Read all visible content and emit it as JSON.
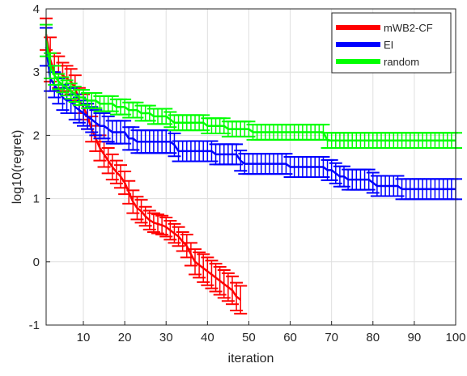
{
  "chart_data": {
    "type": "line",
    "title": "",
    "xlabel": "iteration",
    "ylabel": "log10(regret)",
    "xlim": [
      1,
      100
    ],
    "ylim": [
      -1,
      4
    ],
    "xticks": [
      10,
      20,
      30,
      40,
      50,
      60,
      70,
      80,
      90,
      100
    ],
    "yticks": [
      -1,
      0,
      1,
      2,
      3,
      4
    ],
    "grid": true,
    "legend_position": "top-right",
    "series": [
      {
        "name": "mWB2-CF",
        "color": "#ff0000",
        "x": [
          1,
          2,
          3,
          4,
          5,
          6,
          7,
          8,
          9,
          10,
          11,
          12,
          13,
          14,
          15,
          16,
          17,
          18,
          19,
          20,
          21,
          22,
          23,
          24,
          25,
          26,
          27,
          28,
          29,
          30,
          31,
          32,
          33,
          34,
          35,
          36,
          37,
          38,
          39,
          40,
          41,
          42,
          43,
          44,
          45,
          46,
          47,
          48
        ],
        "y": [
          3.6,
          3.2,
          3.0,
          3.0,
          2.95,
          2.9,
          2.85,
          2.75,
          2.55,
          2.45,
          2.3,
          2.1,
          1.95,
          1.8,
          1.7,
          1.6,
          1.5,
          1.42,
          1.35,
          1.25,
          1.1,
          0.95,
          0.85,
          0.8,
          0.72,
          0.66,
          0.62,
          0.6,
          0.58,
          0.55,
          0.5,
          0.45,
          0.4,
          0.32,
          0.25,
          0.12,
          0.0,
          -0.05,
          -0.1,
          -0.15,
          -0.2,
          -0.25,
          -0.3,
          -0.35,
          -0.4,
          -0.45,
          -0.55,
          -0.6
        ],
        "err": [
          0.25,
          0.35,
          0.3,
          0.25,
          0.2,
          0.2,
          0.2,
          0.2,
          0.2,
          0.2,
          0.2,
          0.2,
          0.2,
          0.2,
          0.2,
          0.2,
          0.2,
          0.18,
          0.18,
          0.18,
          0.18,
          0.18,
          0.18,
          0.18,
          0.15,
          0.15,
          0.15,
          0.15,
          0.15,
          0.15,
          0.15,
          0.15,
          0.15,
          0.15,
          0.18,
          0.18,
          0.2,
          0.2,
          0.22,
          0.22,
          0.22,
          0.22,
          0.22,
          0.22,
          0.22,
          0.22,
          0.22,
          0.22
        ]
      },
      {
        "name": "EI",
        "color": "#0000ff",
        "x": [
          1,
          2,
          3,
          4,
          5,
          6,
          7,
          8,
          9,
          10,
          11,
          12,
          13,
          14,
          15,
          16,
          17,
          18,
          19,
          20,
          21,
          22,
          23,
          24,
          25,
          26,
          27,
          28,
          29,
          30,
          31,
          32,
          33,
          34,
          35,
          36,
          37,
          38,
          39,
          40,
          41,
          42,
          43,
          44,
          45,
          46,
          47,
          48,
          49,
          50,
          51,
          52,
          53,
          54,
          55,
          56,
          57,
          58,
          59,
          60,
          61,
          62,
          63,
          64,
          65,
          66,
          67,
          68,
          69,
          70,
          71,
          72,
          73,
          74,
          75,
          76,
          77,
          78,
          79,
          80,
          81,
          82,
          83,
          84,
          85,
          86,
          87,
          88,
          89,
          90,
          91,
          92,
          93,
          94,
          95,
          96,
          97,
          98,
          99,
          100
        ],
        "y": [
          3.4,
          2.9,
          2.8,
          2.7,
          2.6,
          2.55,
          2.55,
          2.45,
          2.4,
          2.35,
          2.3,
          2.25,
          2.2,
          2.15,
          2.15,
          2.1,
          2.05,
          2.05,
          2.05,
          2.05,
          1.95,
          1.95,
          1.9,
          1.9,
          1.9,
          1.9,
          1.9,
          1.9,
          1.9,
          1.9,
          1.9,
          1.85,
          1.75,
          1.75,
          1.75,
          1.75,
          1.75,
          1.75,
          1.75,
          1.75,
          1.75,
          1.7,
          1.7,
          1.7,
          1.7,
          1.7,
          1.7,
          1.6,
          1.55,
          1.55,
          1.55,
          1.55,
          1.55,
          1.55,
          1.55,
          1.55,
          1.55,
          1.55,
          1.55,
          1.5,
          1.5,
          1.5,
          1.5,
          1.5,
          1.5,
          1.5,
          1.5,
          1.5,
          1.45,
          1.45,
          1.4,
          1.35,
          1.35,
          1.3,
          1.3,
          1.3,
          1.3,
          1.3,
          1.3,
          1.25,
          1.2,
          1.2,
          1.2,
          1.2,
          1.2,
          1.2,
          1.15,
          1.15,
          1.15,
          1.15,
          1.15,
          1.15,
          1.15,
          1.15,
          1.15,
          1.15,
          1.15,
          1.15,
          1.15,
          1.15
        ],
        "err": [
          0.3,
          0.2,
          0.2,
          0.2,
          0.2,
          0.2,
          0.2,
          0.2,
          0.2,
          0.2,
          0.2,
          0.2,
          0.2,
          0.2,
          0.2,
          0.2,
          0.18,
          0.18,
          0.18,
          0.18,
          0.18,
          0.18,
          0.18,
          0.18,
          0.18,
          0.18,
          0.18,
          0.18,
          0.18,
          0.18,
          0.18,
          0.18,
          0.16,
          0.16,
          0.16,
          0.16,
          0.16,
          0.16,
          0.16,
          0.16,
          0.16,
          0.16,
          0.16,
          0.16,
          0.16,
          0.16,
          0.16,
          0.16,
          0.16,
          0.16,
          0.16,
          0.16,
          0.16,
          0.16,
          0.16,
          0.16,
          0.16,
          0.16,
          0.16,
          0.16,
          0.16,
          0.16,
          0.16,
          0.16,
          0.16,
          0.16,
          0.16,
          0.16,
          0.16,
          0.16,
          0.16,
          0.16,
          0.16,
          0.16,
          0.16,
          0.16,
          0.16,
          0.16,
          0.16,
          0.16,
          0.16,
          0.16,
          0.16,
          0.16,
          0.16,
          0.16,
          0.16,
          0.16,
          0.16,
          0.16,
          0.16,
          0.16,
          0.16,
          0.16,
          0.16,
          0.16,
          0.16,
          0.16,
          0.16,
          0.16
        ]
      },
      {
        "name": "random",
        "color": "#00ff00",
        "x": [
          1,
          2,
          3,
          4,
          5,
          6,
          7,
          8,
          9,
          10,
          11,
          12,
          13,
          14,
          15,
          16,
          17,
          18,
          19,
          20,
          21,
          22,
          23,
          24,
          25,
          26,
          27,
          28,
          29,
          30,
          31,
          32,
          33,
          34,
          35,
          36,
          37,
          38,
          39,
          40,
          41,
          42,
          43,
          44,
          45,
          46,
          47,
          48,
          49,
          50,
          51,
          52,
          53,
          54,
          55,
          56,
          57,
          58,
          59,
          60,
          61,
          62,
          63,
          64,
          65,
          66,
          67,
          68,
          69,
          70,
          71,
          72,
          73,
          74,
          75,
          76,
          77,
          78,
          79,
          80,
          81,
          82,
          83,
          84,
          85,
          86,
          87,
          88,
          89,
          90,
          91,
          92,
          93,
          94,
          95,
          96,
          97,
          98,
          99,
          100
        ],
        "y": [
          3.5,
          3.1,
          2.95,
          2.85,
          2.8,
          2.75,
          2.7,
          2.65,
          2.6,
          2.6,
          2.55,
          2.55,
          2.55,
          2.5,
          2.5,
          2.5,
          2.5,
          2.45,
          2.45,
          2.45,
          2.4,
          2.4,
          2.4,
          2.35,
          2.35,
          2.35,
          2.3,
          2.3,
          2.3,
          2.3,
          2.25,
          2.2,
          2.2,
          2.2,
          2.2,
          2.2,
          2.2,
          2.2,
          2.2,
          2.15,
          2.15,
          2.15,
          2.15,
          2.15,
          2.1,
          2.1,
          2.1,
          2.1,
          2.1,
          2.1,
          2.05,
          2.05,
          2.05,
          2.05,
          2.05,
          2.05,
          2.05,
          2.05,
          2.05,
          2.05,
          2.05,
          2.05,
          2.05,
          2.05,
          2.05,
          2.05,
          2.05,
          2.05,
          1.92,
          1.92,
          1.92,
          1.92,
          1.92,
          1.92,
          1.92,
          1.92,
          1.92,
          1.92,
          1.92,
          1.92,
          1.92,
          1.92,
          1.92,
          1.92,
          1.92,
          1.92,
          1.92,
          1.92,
          1.92,
          1.92,
          1.92,
          1.92,
          1.92,
          1.92,
          1.92,
          1.92,
          1.92,
          1.92,
          1.92,
          1.92
        ],
        "err": [
          0.25,
          0.2,
          0.15,
          0.12,
          0.12,
          0.12,
          0.12,
          0.12,
          0.12,
          0.12,
          0.12,
          0.12,
          0.12,
          0.12,
          0.12,
          0.12,
          0.12,
          0.12,
          0.12,
          0.12,
          0.12,
          0.12,
          0.12,
          0.12,
          0.12,
          0.12,
          0.12,
          0.12,
          0.12,
          0.12,
          0.12,
          0.12,
          0.12,
          0.12,
          0.12,
          0.12,
          0.12,
          0.12,
          0.12,
          0.12,
          0.12,
          0.12,
          0.12,
          0.12,
          0.12,
          0.12,
          0.12,
          0.12,
          0.12,
          0.12,
          0.12,
          0.12,
          0.12,
          0.12,
          0.12,
          0.12,
          0.12,
          0.12,
          0.12,
          0.12,
          0.12,
          0.12,
          0.12,
          0.12,
          0.12,
          0.12,
          0.12,
          0.12,
          0.12,
          0.12,
          0.12,
          0.12,
          0.12,
          0.12,
          0.12,
          0.12,
          0.12,
          0.12,
          0.12,
          0.12,
          0.12,
          0.12,
          0.12,
          0.12,
          0.12,
          0.12,
          0.12,
          0.12,
          0.12,
          0.12,
          0.12,
          0.12,
          0.12,
          0.12,
          0.12,
          0.12,
          0.12,
          0.12,
          0.12,
          0.12
        ]
      }
    ]
  }
}
